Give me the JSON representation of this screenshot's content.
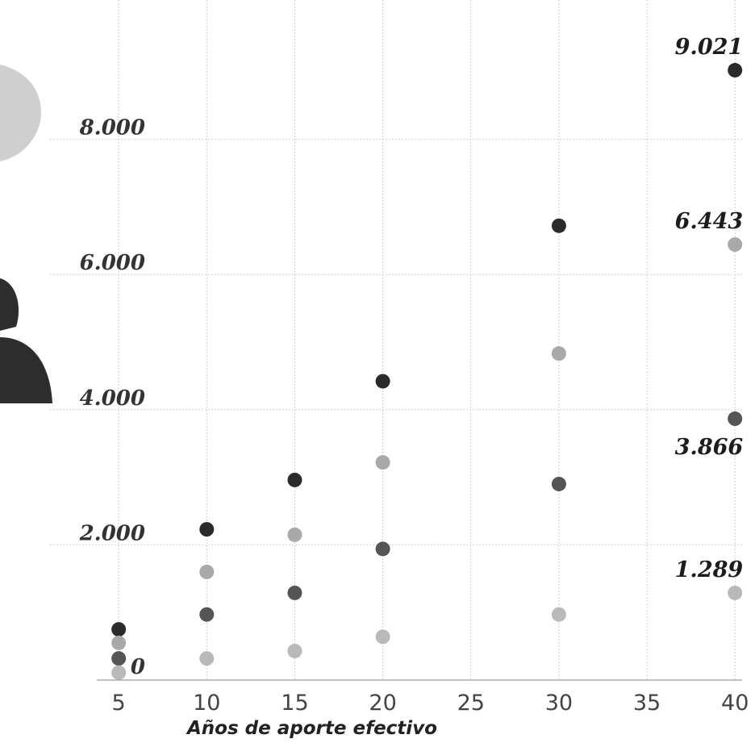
{
  "chart_data": {
    "type": "scatter",
    "title": "",
    "xlabel": "Años de aporte efectivo",
    "ylabel": "",
    "x_ticks": [
      "5",
      "10",
      "15",
      "20",
      "25",
      "30",
      "35",
      "40"
    ],
    "y_ticks": [
      "0",
      "2.000",
      "4.000",
      "6.000",
      "8.000"
    ],
    "xlim": [
      0,
      40
    ],
    "ylim": [
      0,
      10000
    ],
    "grid": true,
    "legend": "none",
    "series": [
      {
        "color": "#2b2b2b",
        "points": [
          {
            "x": 5,
            "y": 750
          },
          {
            "x": 10,
            "y": 2230
          },
          {
            "x": 15,
            "y": 2960
          },
          {
            "x": 20,
            "y": 4420
          },
          {
            "x": 30,
            "y": 6720
          },
          {
            "x": 40,
            "y": 9021
          }
        ]
      },
      {
        "color": "#a9a9a9",
        "points": [
          {
            "x": 5,
            "y": 550
          },
          {
            "x": 10,
            "y": 1600
          },
          {
            "x": 15,
            "y": 2150
          },
          {
            "x": 20,
            "y": 3220
          },
          {
            "x": 30,
            "y": 4830
          },
          {
            "x": 40,
            "y": 6443
          }
        ]
      },
      {
        "color": "#555555",
        "points": [
          {
            "x": 5,
            "y": 320
          },
          {
            "x": 10,
            "y": 970
          },
          {
            "x": 15,
            "y": 1290
          },
          {
            "x": 20,
            "y": 1940
          },
          {
            "x": 30,
            "y": 2900
          },
          {
            "x": 40,
            "y": 3866
          }
        ]
      },
      {
        "color": "#b9b9b9",
        "points": [
          {
            "x": 5,
            "y": 110
          },
          {
            "x": 10,
            "y": 320
          },
          {
            "x": 15,
            "y": 430
          },
          {
            "x": 20,
            "y": 640
          },
          {
            "x": 30,
            "y": 970
          },
          {
            "x": 40,
            "y": 1289
          }
        ]
      }
    ],
    "annotations": [
      {
        "text": "9.021",
        "x": 40,
        "y": 9021
      },
      {
        "text": "6.443",
        "x": 40,
        "y": 6443
      },
      {
        "text": "3.866",
        "x": 40,
        "y": 3866
      },
      {
        "text": "1.289",
        "x": 40,
        "y": 1289
      }
    ]
  }
}
